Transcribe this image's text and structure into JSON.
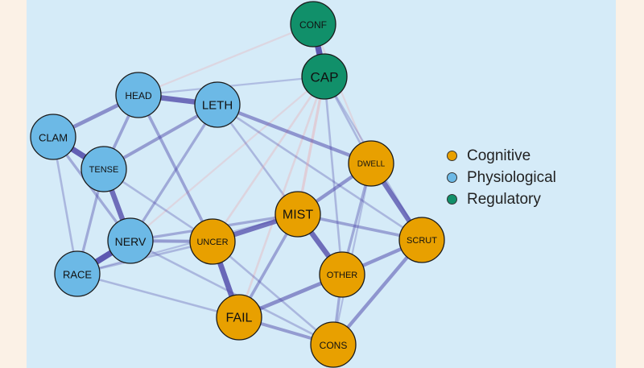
{
  "colors": {
    "cognitive": "#e8a000",
    "physiological": "#6cb9e6",
    "regulatory": "#11906a",
    "positive_edge": "#4b43a6",
    "negative_edge": "#f0a0a4"
  },
  "legend": {
    "items": [
      {
        "label": "Cognitive",
        "color": "#e8a000"
      },
      {
        "label": "Physiological",
        "color": "#6cb9e6"
      },
      {
        "label": "Regulatory",
        "color": "#11906a"
      }
    ]
  },
  "nodes": [
    {
      "id": "CONF",
      "label": "CONF",
      "group": "regulatory"
    },
    {
      "id": "CAP",
      "label": "CAP",
      "group": "regulatory"
    },
    {
      "id": "HEAD",
      "label": "HEAD",
      "group": "physiological"
    },
    {
      "id": "LETH",
      "label": "LETH",
      "group": "physiological"
    },
    {
      "id": "CLAM",
      "label": "CLAM",
      "group": "physiological"
    },
    {
      "id": "TENSE",
      "label": "TENSE",
      "group": "physiological"
    },
    {
      "id": "NERV",
      "label": "NERV",
      "group": "physiological"
    },
    {
      "id": "RACE",
      "label": "RACE",
      "group": "physiological"
    },
    {
      "id": "DWELL",
      "label": "DWELL",
      "group": "cognitive"
    },
    {
      "id": "MIST",
      "label": "MIST",
      "group": "cognitive"
    },
    {
      "id": "UNCER",
      "label": "UNCER",
      "group": "cognitive"
    },
    {
      "id": "SCRUT",
      "label": "SCRUT",
      "group": "cognitive"
    },
    {
      "id": "OTHER",
      "label": "OTHER",
      "group": "cognitive"
    },
    {
      "id": "FAIL",
      "label": "FAIL",
      "group": "cognitive"
    },
    {
      "id": "CONS",
      "label": "CONS",
      "group": "cognitive"
    }
  ],
  "edges": [
    {
      "source": "CONF",
      "target": "CAP",
      "weight": 0.9,
      "sign": "positive"
    },
    {
      "source": "HEAD",
      "target": "LETH",
      "weight": 0.75,
      "sign": "positive"
    },
    {
      "source": "CLAM",
      "target": "HEAD",
      "weight": 0.5,
      "sign": "positive"
    },
    {
      "source": "CLAM",
      "target": "TENSE",
      "weight": 0.85,
      "sign": "positive"
    },
    {
      "source": "HEAD",
      "target": "TENSE",
      "weight": 0.35,
      "sign": "positive"
    },
    {
      "source": "TENSE",
      "target": "LETH",
      "weight": 0.4,
      "sign": "positive"
    },
    {
      "source": "TENSE",
      "target": "NERV",
      "weight": 0.75,
      "sign": "positive"
    },
    {
      "source": "NERV",
      "target": "RACE",
      "weight": 0.9,
      "sign": "positive"
    },
    {
      "source": "CLAM",
      "target": "NERV",
      "weight": 0.3,
      "sign": "positive"
    },
    {
      "source": "CLAM",
      "target": "RACE",
      "weight": 0.2,
      "sign": "positive"
    },
    {
      "source": "TENSE",
      "target": "RACE",
      "weight": 0.3,
      "sign": "positive"
    },
    {
      "source": "LETH",
      "target": "DWELL",
      "weight": 0.45,
      "sign": "positive"
    },
    {
      "source": "LETH",
      "target": "NERV",
      "weight": 0.3,
      "sign": "positive"
    },
    {
      "source": "HEAD",
      "target": "UNCER",
      "weight": 0.35,
      "sign": "positive"
    },
    {
      "source": "NERV",
      "target": "UNCER",
      "weight": 0.4,
      "sign": "positive"
    },
    {
      "source": "NERV",
      "target": "MIST",
      "weight": 0.3,
      "sign": "positive"
    },
    {
      "source": "RACE",
      "target": "UNCER",
      "weight": 0.2,
      "sign": "positive"
    },
    {
      "source": "UNCER",
      "target": "MIST",
      "weight": 0.7,
      "sign": "positive"
    },
    {
      "source": "UNCER",
      "target": "FAIL",
      "weight": 0.8,
      "sign": "positive"
    },
    {
      "source": "MIST",
      "target": "OTHER",
      "weight": 0.75,
      "sign": "positive"
    },
    {
      "source": "MIST",
      "target": "DWELL",
      "weight": 0.45,
      "sign": "positive"
    },
    {
      "source": "MIST",
      "target": "SCRUT",
      "weight": 0.35,
      "sign": "positive"
    },
    {
      "source": "MIST",
      "target": "FAIL",
      "weight": 0.35,
      "sign": "positive"
    },
    {
      "source": "DWELL",
      "target": "SCRUT",
      "weight": 0.7,
      "sign": "positive"
    },
    {
      "source": "DWELL",
      "target": "OTHER",
      "weight": 0.3,
      "sign": "positive"
    },
    {
      "source": "SCRUT",
      "target": "OTHER",
      "weight": 0.45,
      "sign": "positive"
    },
    {
      "source": "SCRUT",
      "target": "CONS",
      "weight": 0.45,
      "sign": "positive"
    },
    {
      "source": "OTHER",
      "target": "FAIL",
      "weight": 0.5,
      "sign": "positive"
    },
    {
      "source": "FAIL",
      "target": "CONS",
      "weight": 0.4,
      "sign": "positive"
    },
    {
      "source": "OTHER",
      "target": "CONS",
      "weight": 0.3,
      "sign": "positive"
    },
    {
      "source": "NERV",
      "target": "CONS",
      "weight": 0.2,
      "sign": "positive"
    },
    {
      "source": "RACE",
      "target": "FAIL",
      "weight": 0.2,
      "sign": "positive"
    },
    {
      "source": "TENSE",
      "target": "UNCER",
      "weight": 0.2,
      "sign": "positive"
    },
    {
      "source": "LETH",
      "target": "MIST",
      "weight": 0.2,
      "sign": "positive"
    },
    {
      "source": "CAP",
      "target": "MIST",
      "weight": 0.3,
      "sign": "negative"
    },
    {
      "source": "CAP",
      "target": "UNCER",
      "weight": 0.2,
      "sign": "negative"
    },
    {
      "source": "CAP",
      "target": "FAIL",
      "weight": 0.2,
      "sign": "negative"
    },
    {
      "source": "CAP",
      "target": "NERV",
      "weight": 0.15,
      "sign": "negative"
    },
    {
      "source": "CONF",
      "target": "HEAD",
      "weight": 0.15,
      "sign": "negative"
    },
    {
      "source": "CONF",
      "target": "DWELL",
      "weight": 0.15,
      "sign": "negative"
    },
    {
      "source": "CAP",
      "target": "OTHER",
      "weight": 0.2,
      "sign": "positive"
    },
    {
      "source": "CAP",
      "target": "DWELL",
      "weight": 0.2,
      "sign": "positive"
    },
    {
      "source": "CAP",
      "target": "SCRUT",
      "weight": 0.15,
      "sign": "positive"
    },
    {
      "source": "CAP",
      "target": "HEAD",
      "weight": 0.15,
      "sign": "positive"
    },
    {
      "source": "LETH",
      "target": "SCRUT",
      "weight": 0.2,
      "sign": "positive"
    },
    {
      "source": "RACE",
      "target": "MIST",
      "weight": 0.15,
      "sign": "positive"
    },
    {
      "source": "UNCER",
      "target": "CONS",
      "weight": 0.2,
      "sign": "positive"
    },
    {
      "source": "DWELL",
      "target": "CONS",
      "weight": 0.15,
      "sign": "positive"
    }
  ]
}
